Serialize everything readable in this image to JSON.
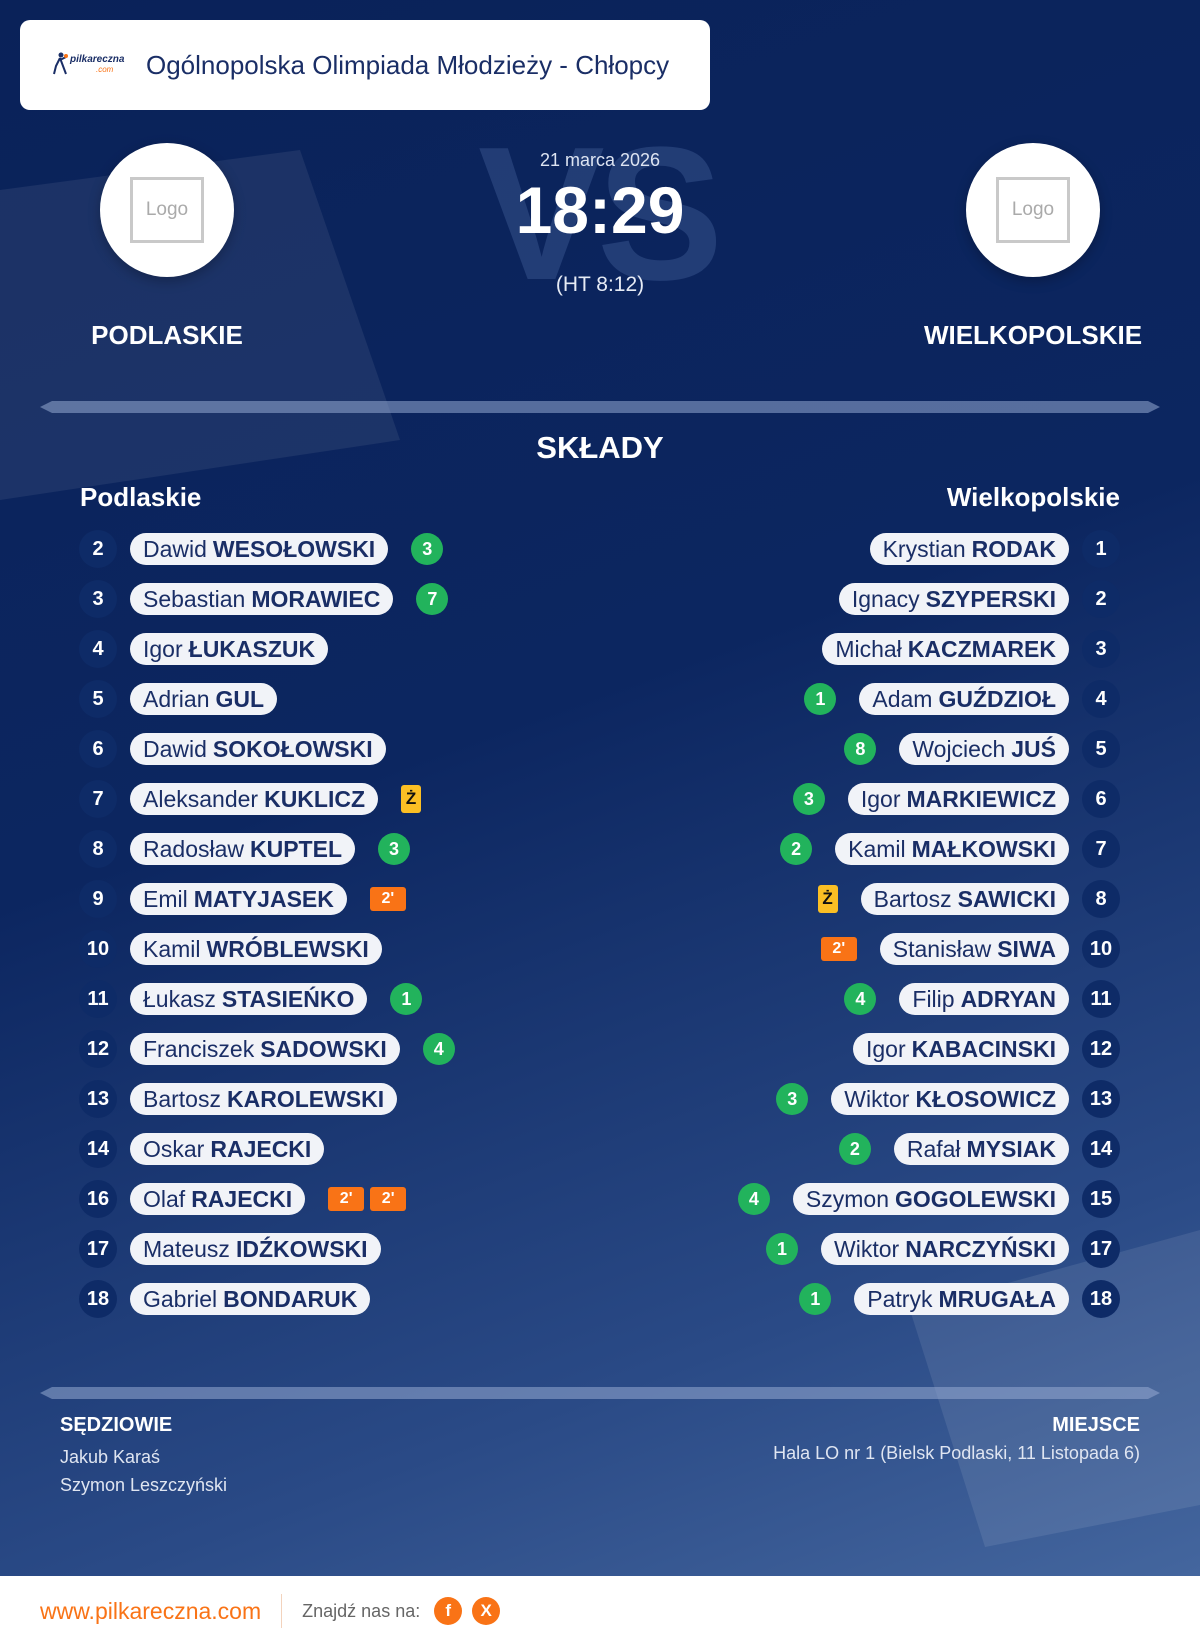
{
  "header": {
    "title": "Ogólnopolska Olimpiada Młodzieży - Chłopcy",
    "brand": "pilkareczna",
    "brand_suffix": ".com"
  },
  "match": {
    "date": "21 marca 2026",
    "score": "18:29",
    "halftime": "(HT 8:12)",
    "vs": "VS",
    "home": "PODLASKIE",
    "away": "WIELKOPOLSKIE",
    "logo_placeholder": "Logo"
  },
  "lineups": {
    "title": "SKŁADY",
    "home_label": "Podlaskie",
    "away_label": "Wielkopolskie",
    "home": [
      {
        "n": "2",
        "first": "Dawid",
        "last": "WESOŁOWSKI",
        "events": [
          {
            "t": "goal",
            "v": "3"
          }
        ]
      },
      {
        "n": "3",
        "first": "Sebastian",
        "last": "MORAWIEC",
        "events": [
          {
            "t": "goal",
            "v": "7"
          }
        ]
      },
      {
        "n": "4",
        "first": "Igor",
        "last": "ŁUKASZUK",
        "events": []
      },
      {
        "n": "5",
        "first": "Adrian",
        "last": "GUL",
        "events": []
      },
      {
        "n": "6",
        "first": "Dawid",
        "last": "SOKOŁOWSKI",
        "events": []
      },
      {
        "n": "7",
        "first": "Aleksander",
        "last": "KUKLICZ",
        "events": [
          {
            "t": "yel",
            "v": "Ż"
          }
        ]
      },
      {
        "n": "8",
        "first": "Radosław",
        "last": "KUPTEL",
        "events": [
          {
            "t": "goal",
            "v": "3"
          }
        ]
      },
      {
        "n": "9",
        "first": "Emil",
        "last": "MATYJASEK",
        "events": [
          {
            "t": "pen",
            "v": "2'"
          }
        ]
      },
      {
        "n": "10",
        "first": "Kamil",
        "last": "WRÓBLEWSKI",
        "events": []
      },
      {
        "n": "11",
        "first": "Łukasz",
        "last": "STASIEŃKO",
        "events": [
          {
            "t": "goal",
            "v": "1"
          }
        ]
      },
      {
        "n": "12",
        "first": "Franciszek",
        "last": "SADOWSKI",
        "events": [
          {
            "t": "goal",
            "v": "4"
          }
        ]
      },
      {
        "n": "13",
        "first": "Bartosz",
        "last": "KAROLEWSKI",
        "events": []
      },
      {
        "n": "14",
        "first": "Oskar",
        "last": "RAJECKI",
        "events": []
      },
      {
        "n": "16",
        "first": "Olaf",
        "last": "RAJECKI",
        "events": [
          {
            "t": "pen",
            "v": "2'"
          },
          {
            "t": "pen",
            "v": "2'"
          }
        ]
      },
      {
        "n": "17",
        "first": "Mateusz",
        "last": "IDŹKOWSKI",
        "events": []
      },
      {
        "n": "18",
        "first": "Gabriel",
        "last": "BONDARUK",
        "events": []
      }
    ],
    "away": [
      {
        "n": "1",
        "first": "Krystian",
        "last": "RODAK",
        "events": []
      },
      {
        "n": "2",
        "first": "Ignacy",
        "last": "SZYPERSKI",
        "events": []
      },
      {
        "n": "3",
        "first": "Michał",
        "last": "KACZMAREK",
        "events": []
      },
      {
        "n": "4",
        "first": "Adam",
        "last": "GUŹDZIOŁ",
        "events": [
          {
            "t": "goal",
            "v": "1"
          }
        ]
      },
      {
        "n": "5",
        "first": "Wojciech",
        "last": "JUŚ",
        "events": [
          {
            "t": "goal",
            "v": "8"
          }
        ]
      },
      {
        "n": "6",
        "first": "Igor",
        "last": "MARKIEWICZ",
        "events": [
          {
            "t": "goal",
            "v": "3"
          }
        ]
      },
      {
        "n": "7",
        "first": "Kamil",
        "last": "MAŁKOWSKI",
        "events": [
          {
            "t": "goal",
            "v": "2"
          }
        ]
      },
      {
        "n": "8",
        "first": "Bartosz",
        "last": "SAWICKI",
        "events": [
          {
            "t": "yel",
            "v": "Ż"
          }
        ]
      },
      {
        "n": "10",
        "first": "Stanisław",
        "last": "SIWA",
        "events": [
          {
            "t": "pen",
            "v": "2'"
          }
        ]
      },
      {
        "n": "11",
        "first": "Filip",
        "last": "ADRYAN",
        "events": [
          {
            "t": "goal",
            "v": "4"
          }
        ]
      },
      {
        "n": "12",
        "first": "Igor",
        "last": "KABACINSKI",
        "events": []
      },
      {
        "n": "13",
        "first": "Wiktor",
        "last": "KŁOSOWICZ",
        "events": [
          {
            "t": "goal",
            "v": "3"
          }
        ]
      },
      {
        "n": "14",
        "first": "Rafał",
        "last": "MYSIAK",
        "events": [
          {
            "t": "goal",
            "v": "2"
          }
        ]
      },
      {
        "n": "15",
        "first": "Szymon",
        "last": "GOGOLEWSKI",
        "events": [
          {
            "t": "goal",
            "v": "4"
          }
        ]
      },
      {
        "n": "17",
        "first": "Wiktor",
        "last": "NARCZYŃSKI",
        "events": [
          {
            "t": "goal",
            "v": "1"
          }
        ]
      },
      {
        "n": "18",
        "first": "Patryk",
        "last": "MRUGAŁA",
        "events": [
          {
            "t": "goal",
            "v": "1"
          }
        ]
      }
    ]
  },
  "officials": {
    "title": "SĘDZIOWIE",
    "names": [
      "Jakub Karaś",
      "Szymon Leszczyński"
    ]
  },
  "venue": {
    "title": "MIEJSCE",
    "text": "Hala LO nr 1 (Bielsk Podlaski, 11 Listopada 6)"
  },
  "footer": {
    "site": "www.pilkareczna.com",
    "find": "Znajdź nas na:",
    "social": [
      {
        "icon": "facebook-icon",
        "label": "f"
      },
      {
        "icon": "x-icon",
        "label": "X"
      }
    ]
  },
  "colors": {
    "navy": "#1a2e66",
    "goal": "#22b35c",
    "penalty": "#f97316",
    "yellow": "#fbbf24",
    "accent": "#f97316"
  }
}
